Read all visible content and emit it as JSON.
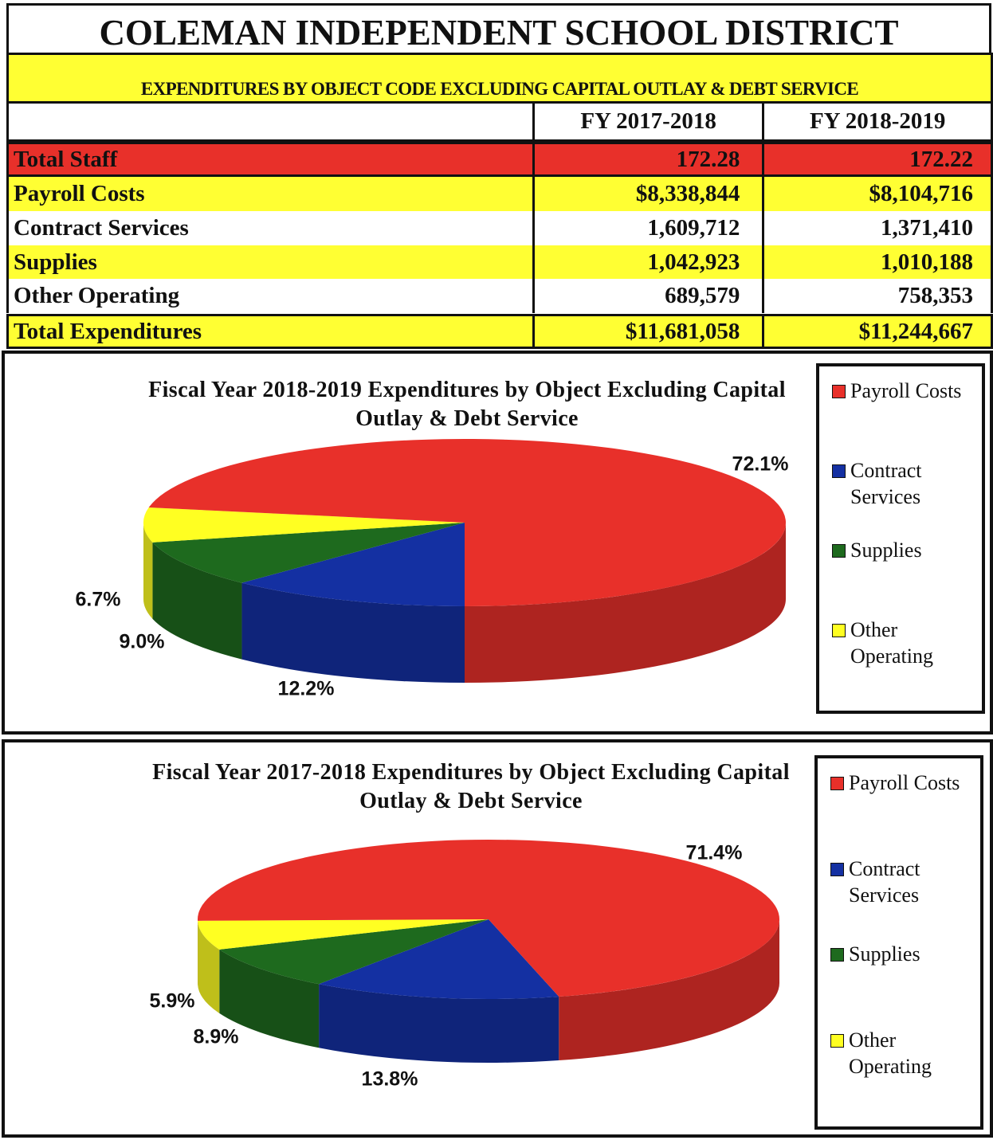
{
  "header": {
    "title": "COLEMAN INDEPENDENT SCHOOL DISTRICT",
    "subtitle": "EXPENDITURES BY OBJECT CODE EXCLUDING CAPITAL OUTLAY & DEBT SERVICE"
  },
  "table": {
    "columns": [
      "FY 2017-2018",
      "FY 2018-2019"
    ],
    "rows": [
      [
        "Total Staff",
        "172.28",
        "172.22"
      ],
      [
        "Payroll Costs",
        "$8,338,844",
        "$8,104,716"
      ],
      [
        "Contract Services",
        "1,609,712",
        "1,371,410"
      ],
      [
        "Supplies",
        "1,042,923",
        "1,010,188"
      ],
      [
        "Other Operating",
        "689,579",
        "758,353"
      ],
      [
        "Total Expenditures",
        "$11,681,058",
        "$11,244,667"
      ]
    ]
  },
  "chart_data": [
    {
      "type": "pie",
      "title": "Fiscal Year 2018-2019 Expenditures  by Object Excluding Capital Outlay & Debt Service",
      "categories": [
        "Payroll Costs",
        "Contract Services",
        "Supplies",
        "Other Operating"
      ],
      "values": [
        72.1,
        12.2,
        9.0,
        6.7
      ],
      "value_labels": [
        "72.1%",
        "12.2%",
        "9.0%",
        "6.7%"
      ],
      "colors": [
        "#e8302a",
        "#1430a2",
        "#1e6a1e",
        "#ffff22"
      ]
    },
    {
      "type": "pie",
      "title": "Fiscal Year 2017-2018 Expenditures by Object Excluding Capital Outlay & Debt Service",
      "categories": [
        "Payroll Costs",
        "Contract Services",
        "Supplies",
        "Other Operating"
      ],
      "values": [
        71.4,
        13.8,
        8.9,
        5.9
      ],
      "value_labels": [
        "71.4%",
        "13.8%",
        "8.9%",
        "5.9%"
      ],
      "colors": [
        "#e8302a",
        "#1430a2",
        "#1e6a1e",
        "#ffff22"
      ]
    }
  ]
}
